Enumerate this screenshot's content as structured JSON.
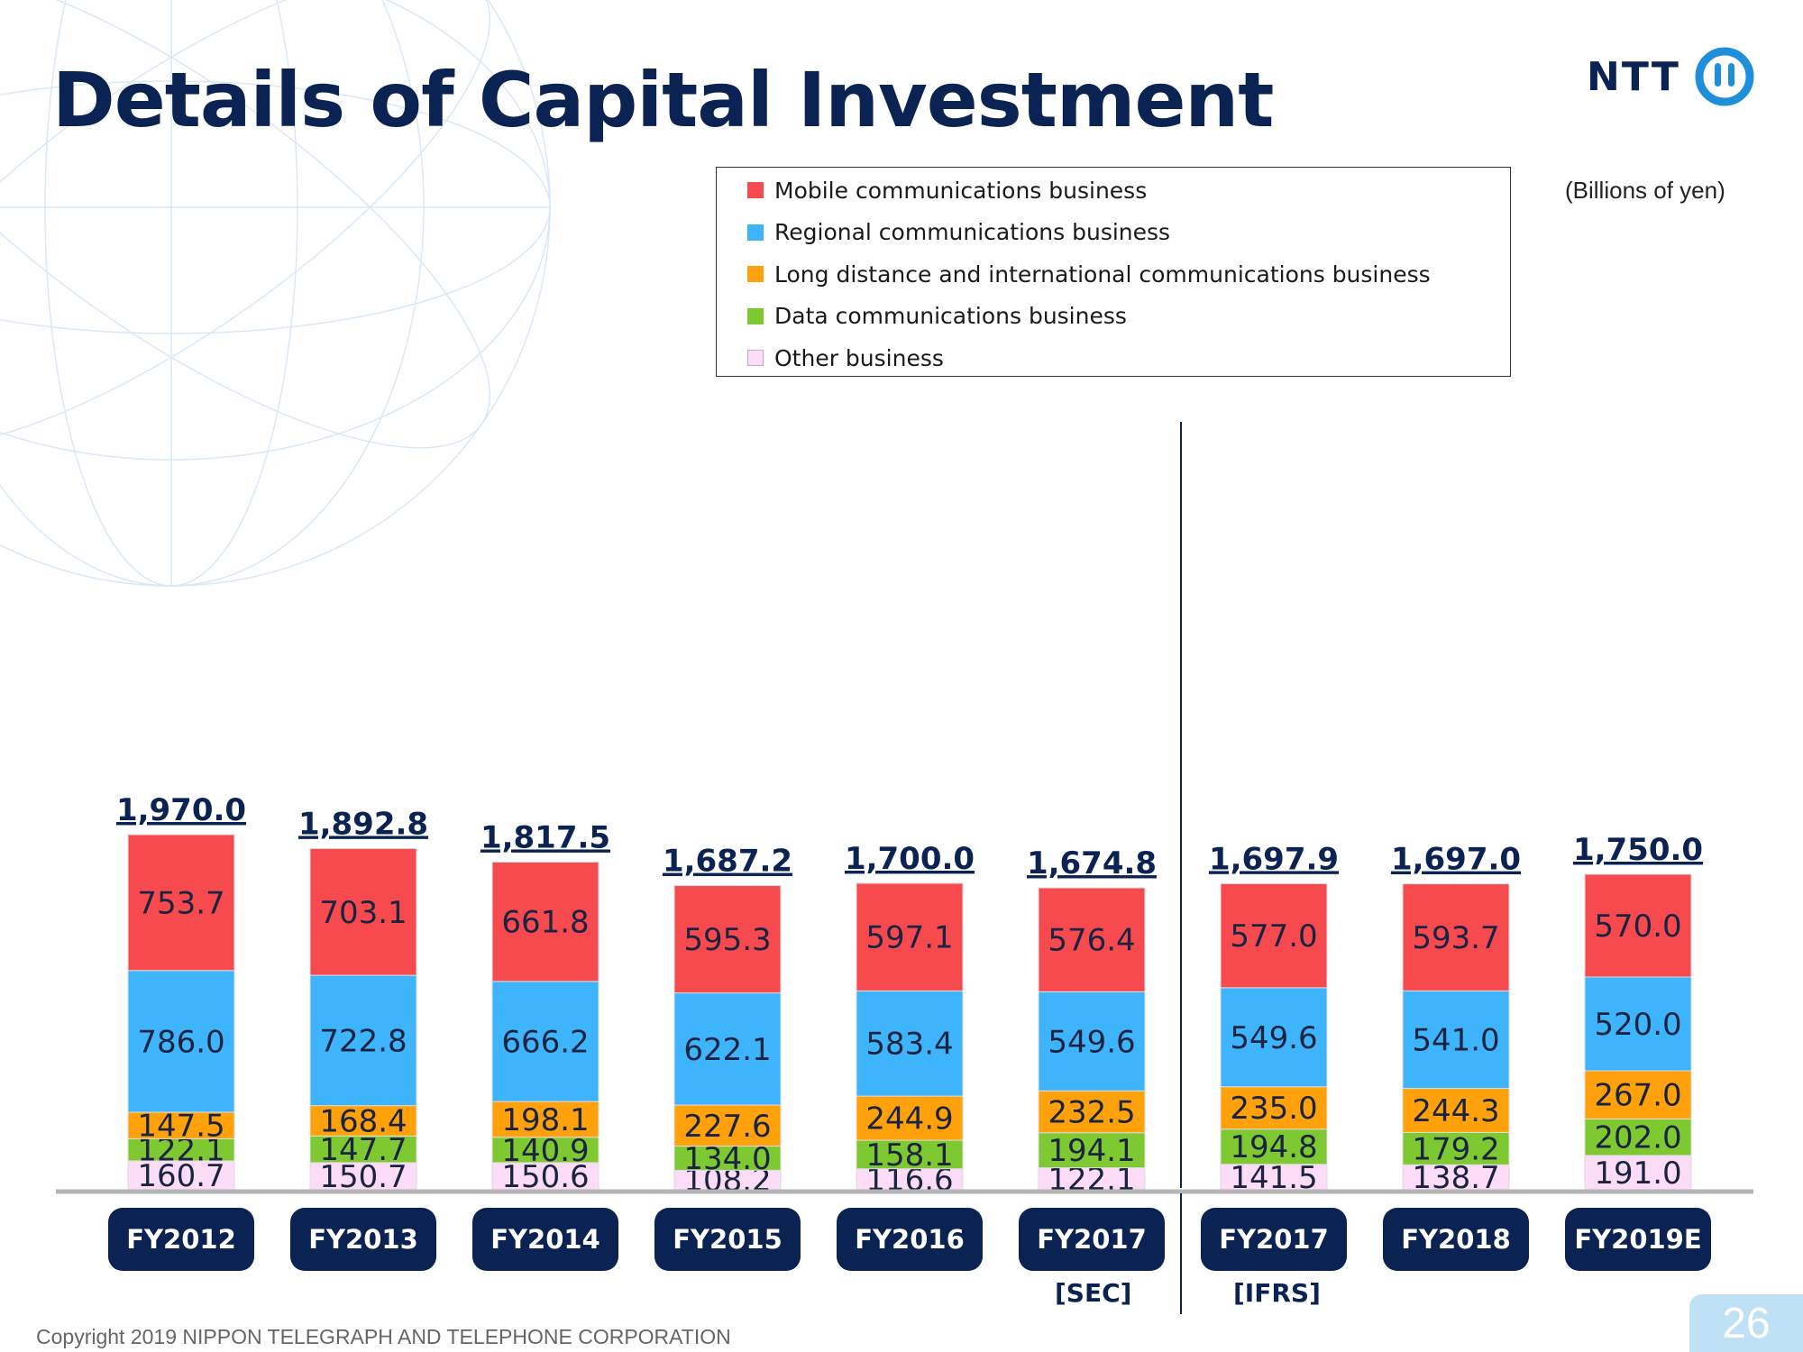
{
  "slide": {
    "title": "Details of Capital Investment",
    "logo_text": "NTT",
    "units": "(Billions of yen)",
    "footer": "Copyright 2019 NIPPON TELEGRAPH AND TELEPHONE CORPORATION",
    "page_number": "26",
    "notes": {
      "sec": "[SEC]",
      "ifrs": "[IFRS]"
    }
  },
  "chart_data": {
    "type": "bar",
    "stacked": true,
    "categories": [
      "FY2012",
      "FY2013",
      "FY2014",
      "FY2015",
      "FY2016",
      "FY2017",
      "FY2017",
      "FY2018",
      "FY2019E"
    ],
    "totals": [
      "1,970.0",
      "1,892.8",
      "1,817.5",
      "1,687.2",
      "1,700.0",
      "1,674.8",
      "1,697.9",
      "1,697.0",
      "1,750.0"
    ],
    "series": [
      {
        "name": "Mobile communications business",
        "color": "#f64a4f",
        "values": [
          753.7,
          703.1,
          661.8,
          595.3,
          597.1,
          576.4,
          577.0,
          593.7,
          570.0
        ]
      },
      {
        "name": "Regional communications business",
        "color": "#3db4fb",
        "values": [
          786.0,
          722.8,
          666.2,
          622.1,
          583.4,
          549.6,
          549.6,
          541.0,
          520.0
        ]
      },
      {
        "name": "Long distance and international communications business",
        "color": "#ffa10a",
        "values": [
          147.5,
          168.4,
          198.1,
          227.6,
          244.9,
          232.5,
          235.0,
          244.3,
          267.0
        ]
      },
      {
        "name": "Data communications business",
        "color": "#7ec832",
        "values": [
          122.1,
          147.7,
          140.9,
          134.0,
          158.1,
          194.1,
          194.8,
          179.2,
          202.0
        ]
      },
      {
        "name": "Other business",
        "color": "#fcdcf6",
        "values": [
          160.7,
          150.7,
          150.6,
          108.2,
          116.6,
          122.1,
          141.5,
          138.7,
          191.0
        ]
      }
    ],
    "legend_position": "top-right",
    "grid": false,
    "divider_after_index": 5
  }
}
